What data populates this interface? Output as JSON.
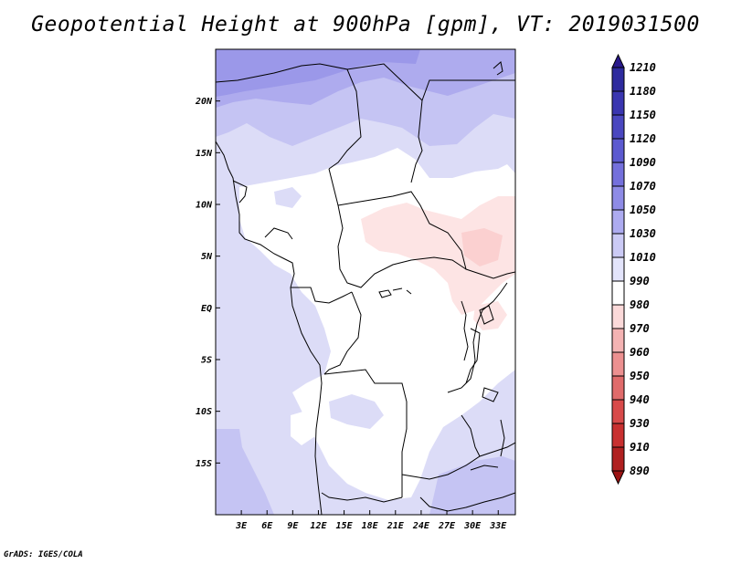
{
  "title": "Geopotential Height at 900hPa [gpm], VT: 2019031500",
  "footer": "GrADS: IGES/COLA",
  "map": {
    "lon_range": [
      0,
      35
    ],
    "lat_range": [
      -20,
      25
    ],
    "lat_labels": [
      "20N",
      "15N",
      "10N",
      "5N",
      "EQ",
      "5S",
      "10S",
      "15S"
    ],
    "lat_values": [
      20,
      15,
      10,
      5,
      0,
      -5,
      -10,
      -15
    ],
    "lon_labels": [
      "3E",
      "6E",
      "9E",
      "12E",
      "15E",
      "18E",
      "21E",
      "24E",
      "27E",
      "30E",
      "33E"
    ],
    "lon_values": [
      3,
      6,
      9,
      12,
      15,
      18,
      21,
      24,
      27,
      30,
      33
    ]
  },
  "colorbar": {
    "levels": [
      "1210",
      "1180",
      "1150",
      "1120",
      "1090",
      "1070",
      "1050",
      "1030",
      "1010",
      "990",
      "980",
      "970",
      "960",
      "950",
      "940",
      "930",
      "910",
      "890"
    ],
    "colors": [
      "#2a1a8c",
      "#2e2b9e",
      "#3a36b0",
      "#4a47c0",
      "#5c5ad0",
      "#7470dc",
      "#8e8be6",
      "#adabf0",
      "#cbcaf5",
      "#e3e4fb",
      "#ffffff",
      "#fbd9d9",
      "#f4b3b3",
      "#ec9090",
      "#e06b6b",
      "#d84a4a",
      "#c83030",
      "#b02020",
      "#9c1414"
    ]
  }
}
